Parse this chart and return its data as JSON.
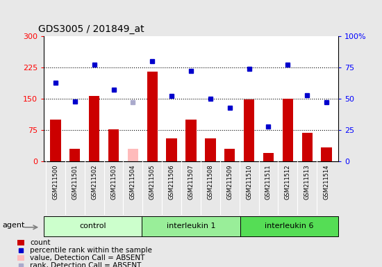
{
  "title": "GDS3005 / 201849_at",
  "samples": [
    "GSM211500",
    "GSM211501",
    "GSM211502",
    "GSM211503",
    "GSM211504",
    "GSM211505",
    "GSM211506",
    "GSM211507",
    "GSM211508",
    "GSM211509",
    "GSM211510",
    "GSM211511",
    "GSM211512",
    "GSM211513",
    "GSM211514"
  ],
  "bar_values": [
    100,
    30,
    157,
    77,
    30,
    215,
    55,
    100,
    55,
    30,
    148,
    20,
    150,
    68,
    33
  ],
  "bar_absent": [
    false,
    false,
    false,
    false,
    true,
    false,
    false,
    false,
    false,
    false,
    false,
    false,
    false,
    false,
    false
  ],
  "rank_values": [
    63,
    48,
    77,
    57,
    47,
    80,
    52,
    72,
    50,
    43,
    74,
    28,
    77,
    53,
    47
  ],
  "rank_absent": [
    false,
    false,
    false,
    false,
    true,
    false,
    false,
    false,
    false,
    false,
    false,
    false,
    false,
    false,
    false
  ],
  "groups": [
    {
      "label": "control",
      "start": 0,
      "end": 5,
      "color": "#ccffcc"
    },
    {
      "label": "interleukin 1",
      "start": 5,
      "end": 10,
      "color": "#99ee99"
    },
    {
      "label": "interleukin 6",
      "start": 10,
      "end": 15,
      "color": "#55dd55"
    }
  ],
  "bar_color": "#cc0000",
  "bar_absent_color": "#ffbbbb",
  "rank_color": "#0000cc",
  "rank_absent_color": "#aaaacc",
  "ylim_left": [
    0,
    300
  ],
  "ylim_right": [
    0,
    100
  ],
  "yticks_left": [
    0,
    75,
    150,
    225,
    300
  ],
  "yticks_right": [
    0,
    25,
    50,
    75,
    100
  ],
  "ytick_labels_left": [
    "0",
    "75",
    "150",
    "225",
    "300"
  ],
  "ytick_labels_right": [
    "0",
    "25",
    "50",
    "75",
    "100%"
  ],
  "hlines": [
    75,
    150,
    225
  ],
  "bar_width": 0.55,
  "fig_bg_color": "#e8e8e8",
  "plot_bg_color": "#ffffff",
  "xtick_area_color": "#cccccc",
  "legend_items": [
    {
      "color": "#cc0000",
      "type": "bar",
      "label": "count"
    },
    {
      "color": "#0000cc",
      "type": "square",
      "label": "percentile rank within the sample"
    },
    {
      "color": "#ffbbbb",
      "type": "bar",
      "label": "value, Detection Call = ABSENT"
    },
    {
      "color": "#aaaacc",
      "type": "square",
      "label": "rank, Detection Call = ABSENT"
    }
  ]
}
